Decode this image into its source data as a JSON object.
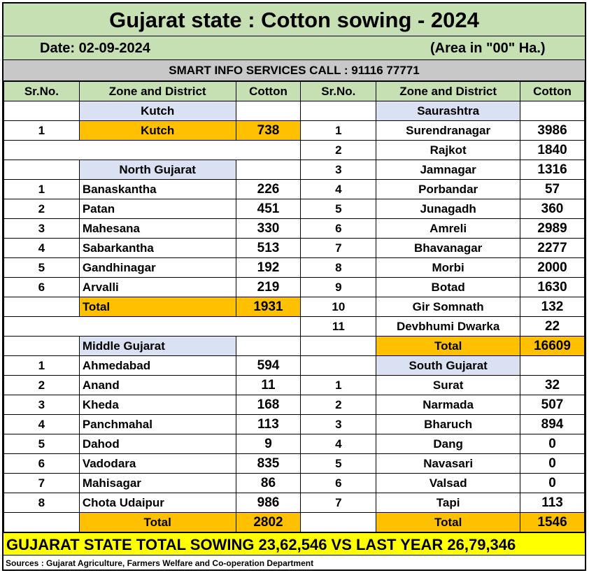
{
  "title": "Gujarat state : Cotton sowing - 2024",
  "date": "Date: 02-09-2024",
  "unit_note": "(Area in \"00\" Ha.)",
  "smart_info": "SMART INFO SERVICES CALL : 91116 77771",
  "headers": {
    "sr": "Sr.No.",
    "zone": "Zone and District",
    "cotton": "Cotton"
  },
  "left": {
    "kutch": {
      "zone": "Kutch",
      "rows": [
        {
          "sr": "1",
          "name": "Kutch",
          "val": "738"
        }
      ]
    },
    "north": {
      "zone": "North Gujarat",
      "rows": [
        {
          "sr": "1",
          "name": "Banaskantha",
          "val": "226"
        },
        {
          "sr": "2",
          "name": "Patan",
          "val": "451"
        },
        {
          "sr": "3",
          "name": "Mahesana",
          "val": "330"
        },
        {
          "sr": "4",
          "name": "Sabarkantha",
          "val": "513"
        },
        {
          "sr": "5",
          "name": "Gandhinagar",
          "val": "192"
        },
        {
          "sr": "6",
          "name": "Arvalli",
          "val": "219"
        }
      ],
      "total_label": "Total",
      "total": "1931"
    },
    "middle": {
      "zone": "Middle Gujarat",
      "rows": [
        {
          "sr": "1",
          "name": "Ahmedabad",
          "val": "594"
        },
        {
          "sr": "2",
          "name": "Anand",
          "val": "11"
        },
        {
          "sr": "3",
          "name": "Kheda",
          "val": "168"
        },
        {
          "sr": "4",
          "name": "Panchmahal",
          "val": "113"
        },
        {
          "sr": "5",
          "name": "Dahod",
          "val": "9"
        },
        {
          "sr": "6",
          "name": "Vadodara",
          "val": "835"
        },
        {
          "sr": "7",
          "name": "Mahisagar",
          "val": "86"
        },
        {
          "sr": "8",
          "name": "Chota Udaipur",
          "val": "986"
        }
      ],
      "total_label": "Total",
      "total": "2802"
    }
  },
  "right": {
    "saurashtra": {
      "zone": "Saurashtra",
      "rows": [
        {
          "sr": "1",
          "name": "Surendranagar",
          "val": "3986"
        },
        {
          "sr": "2",
          "name": "Rajkot",
          "val": "1840"
        },
        {
          "sr": "3",
          "name": "Jamnagar",
          "val": "1316"
        },
        {
          "sr": "4",
          "name": "Porbandar",
          "val": "57"
        },
        {
          "sr": "5",
          "name": "Junagadh",
          "val": "360"
        },
        {
          "sr": "6",
          "name": "Amreli",
          "val": "2989"
        },
        {
          "sr": "7",
          "name": "Bhavanagar",
          "val": "2277"
        },
        {
          "sr": "8",
          "name": "Morbi",
          "val": "2000"
        },
        {
          "sr": "9",
          "name": "Botad",
          "val": "1630"
        },
        {
          "sr": "10",
          "name": "Gir Somnath",
          "val": "132"
        },
        {
          "sr": "11",
          "name": "Devbhumi Dwarka",
          "val": "22"
        }
      ],
      "total_label": "Total",
      "total": "16609"
    },
    "south": {
      "zone": "South Gujarat",
      "rows": [
        {
          "sr": "1",
          "name": "Surat",
          "val": "32"
        },
        {
          "sr": "2",
          "name": "Narmada",
          "val": "507"
        },
        {
          "sr": "3",
          "name": "Bharuch",
          "val": "894"
        },
        {
          "sr": "4",
          "name": "Dang",
          "val": "0"
        },
        {
          "sr": "5",
          "name": "Navasari",
          "val": "0"
        },
        {
          "sr": "6",
          "name": "Valsad",
          "val": "0"
        },
        {
          "sr": "7",
          "name": "Tapi",
          "val": "113"
        }
      ],
      "total_label": "Total",
      "total": "1546"
    }
  },
  "footer": "GUJARAT STATE TOTAL SOWING 23,62,546 VS LAST YEAR 26,79,346",
  "source": "Sources : Gujarat Agriculture, Farmers Welfare and Co-operation Department",
  "colors": {
    "header_green": "#c6e0b4",
    "zone_blue": "#d9e1f2",
    "total_orange": "#ffc000",
    "footer_yellow": "#ffff00",
    "banner_grey": "#c8c8c8"
  }
}
